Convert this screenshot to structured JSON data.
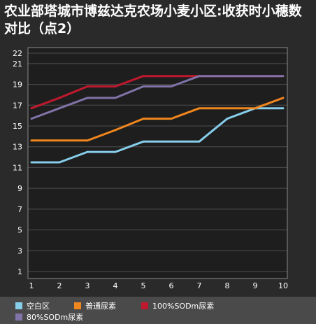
{
  "chart_data": {
    "type": "line",
    "title": "农业部塔城市博兹达克农场小麦小区:收获时小穗数对比（点2）",
    "x": [
      1,
      2,
      3,
      4,
      5,
      6,
      7,
      8,
      9,
      10
    ],
    "yticks": [
      1,
      3,
      5,
      7,
      9,
      11,
      13,
      15,
      17,
      19,
      21,
      22
    ],
    "ylim": [
      1,
      22
    ],
    "grid": "horizontal",
    "legend_position": "bottom",
    "series": [
      {
        "name": "空白区",
        "color": "#87ceeb",
        "values": [
          11.5,
          11.5,
          12.5,
          12.5,
          13.5,
          13.5,
          13.5,
          15.7,
          16.7,
          16.7
        ]
      },
      {
        "name": "普通尿素",
        "color": "#f0861e",
        "values": [
          13.6,
          13.6,
          13.6,
          14.6,
          15.7,
          15.7,
          16.7,
          16.7,
          16.7,
          17.7
        ]
      },
      {
        "name": "100%SODm尿素",
        "color": "#c0192e",
        "values": [
          16.7,
          17.7,
          18.8,
          18.8,
          19.8,
          19.8,
          19.8,
          19.8,
          19.8,
          19.8
        ]
      },
      {
        "name": "80%SODm尿素",
        "color": "#8073a8",
        "values": [
          15.7,
          16.7,
          17.7,
          17.7,
          18.8,
          18.8,
          19.8,
          19.8,
          19.8,
          19.8
        ]
      }
    ]
  }
}
